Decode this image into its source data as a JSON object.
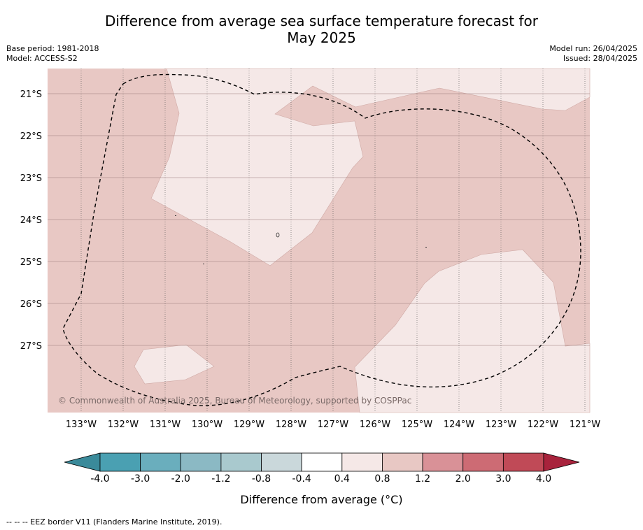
{
  "title_line1": "Difference from average sea surface temperature forecast for",
  "title_line2": "May 2025",
  "base_period": "Base period: 1981-2018",
  "model": "Model: ACCESS-S2",
  "model_run": "Model run: 26/04/2025",
  "issued": "Issued: 28/04/2025",
  "copyright": "© Commonwealth of Australia 2025, Bureau of Meteorology, supported by COSPPac",
  "lat_labels": [
    "21°S",
    "22°S",
    "23°S",
    "24°S",
    "25°S",
    "26°S",
    "27°S"
  ],
  "lon_labels": [
    "133°W",
    "132°W",
    "131°W",
    "130°W",
    "129°W",
    "128°W",
    "127°W",
    "126°W",
    "125°W",
    "124°W",
    "123°W",
    "122°W",
    "121°W"
  ],
  "colorbar": {
    "label": "Difference from average (°C)",
    "ticks": [
      "-4.0",
      "-3.0",
      "-2.0",
      "-1.2",
      "-0.8",
      "-0.4",
      "0.4",
      "0.8",
      "1.2",
      "2.0",
      "3.0",
      "4.0"
    ],
    "colors": [
      "#3a8a9a",
      "#4aa0b2",
      "#6aaebd",
      "#8bb9c4",
      "#a9c9ce",
      "#cad8db",
      "#ffffff",
      "#f5e8e7",
      "#e8c8c4",
      "#d99197",
      "#cd6b74",
      "#c04a57",
      "#a8233c"
    ]
  },
  "legend_classes": {
    "background": "0.8 to 1.2",
    "patches": "0.4 to 0.8"
  },
  "footnote": "-- -- -- EEZ border V11 (Flanders Marine Institute, 2019)."
}
